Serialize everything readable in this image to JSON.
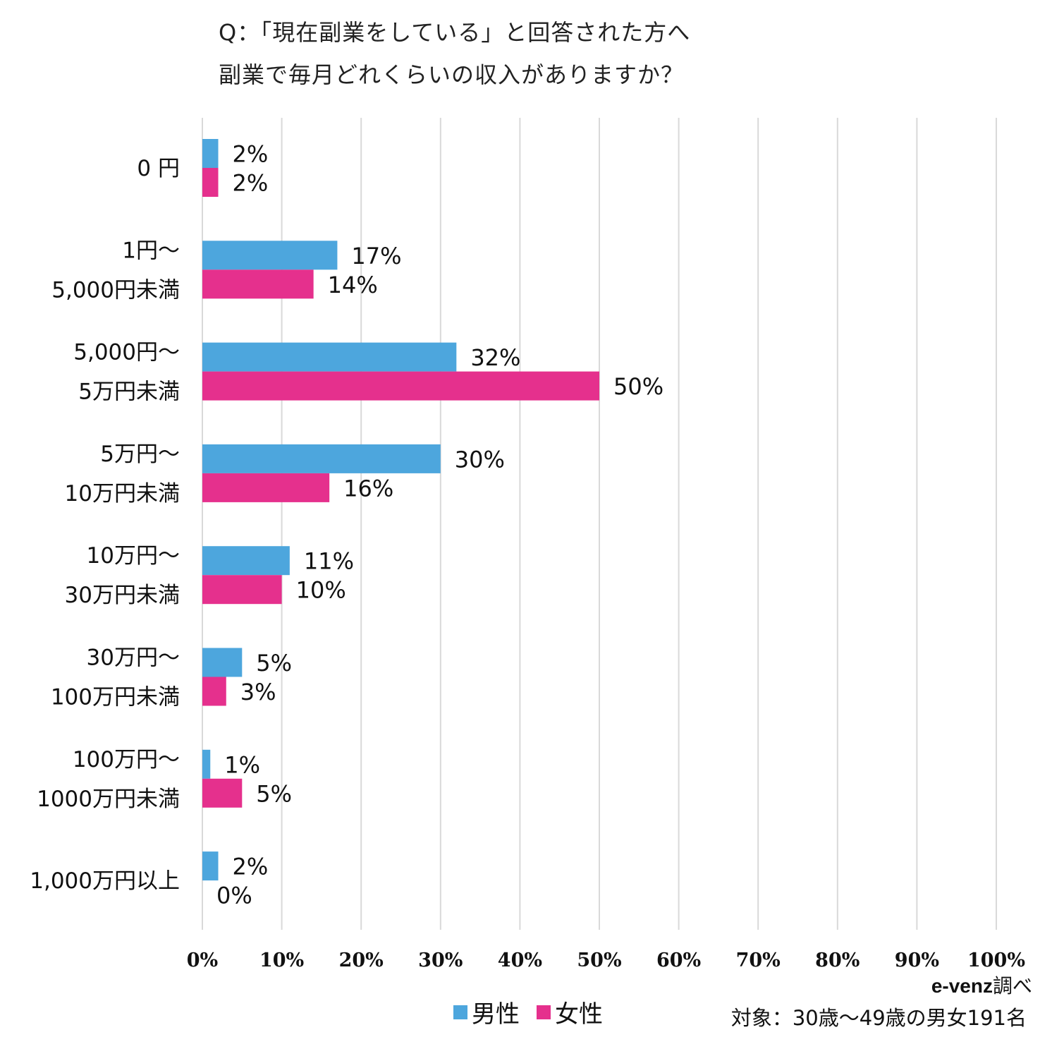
{
  "chart_data": {
    "type": "bar",
    "orientation": "horizontal",
    "title_lines": [
      "Q：「現在副業をしている」と回答された方へ",
      "副業で毎月どれくらいの収入がありますか？"
    ],
    "categories": [
      [
        "0 円"
      ],
      [
        "1円～",
        "5,000円未満"
      ],
      [
        "5,000円～",
        "5万円未満"
      ],
      [
        "5万円～",
        "10万円未満"
      ],
      [
        "10万円～",
        "30万円未満"
      ],
      [
        "30万円～",
        "100万円未満"
      ],
      [
        "100万円～",
        "1000万円未満"
      ],
      [
        "1,000万円以上"
      ]
    ],
    "series": [
      {
        "name": "男性",
        "color": "#4da6dd",
        "values": [
          2,
          17,
          32,
          30,
          11,
          5,
          1,
          2
        ],
        "labels": [
          "2%",
          "17%",
          "32%",
          "30%",
          "11%",
          "5%",
          "1%",
          "2%"
        ]
      },
      {
        "name": "女性",
        "color": "#e5308d",
        "values": [
          2,
          14,
          50,
          16,
          10,
          3,
          5,
          0
        ],
        "labels": [
          "2%",
          "14%",
          "50%",
          "16%",
          "10%",
          "3%",
          "5%",
          "0%"
        ]
      }
    ],
    "xlim": [
      0,
      100
    ],
    "xticks": [
      "0%",
      "10%",
      "20%",
      "30%",
      "40%",
      "50%",
      "60%",
      "70%",
      "80%",
      "90%",
      "100%"
    ],
    "grid": true,
    "legend_position": "bottom-center",
    "gridline_color": "#d9d9d9"
  },
  "source": {
    "brand": "e-venz",
    "suffix": "調べ"
  },
  "target_note": "対象：30歳～49歳の男女191名"
}
